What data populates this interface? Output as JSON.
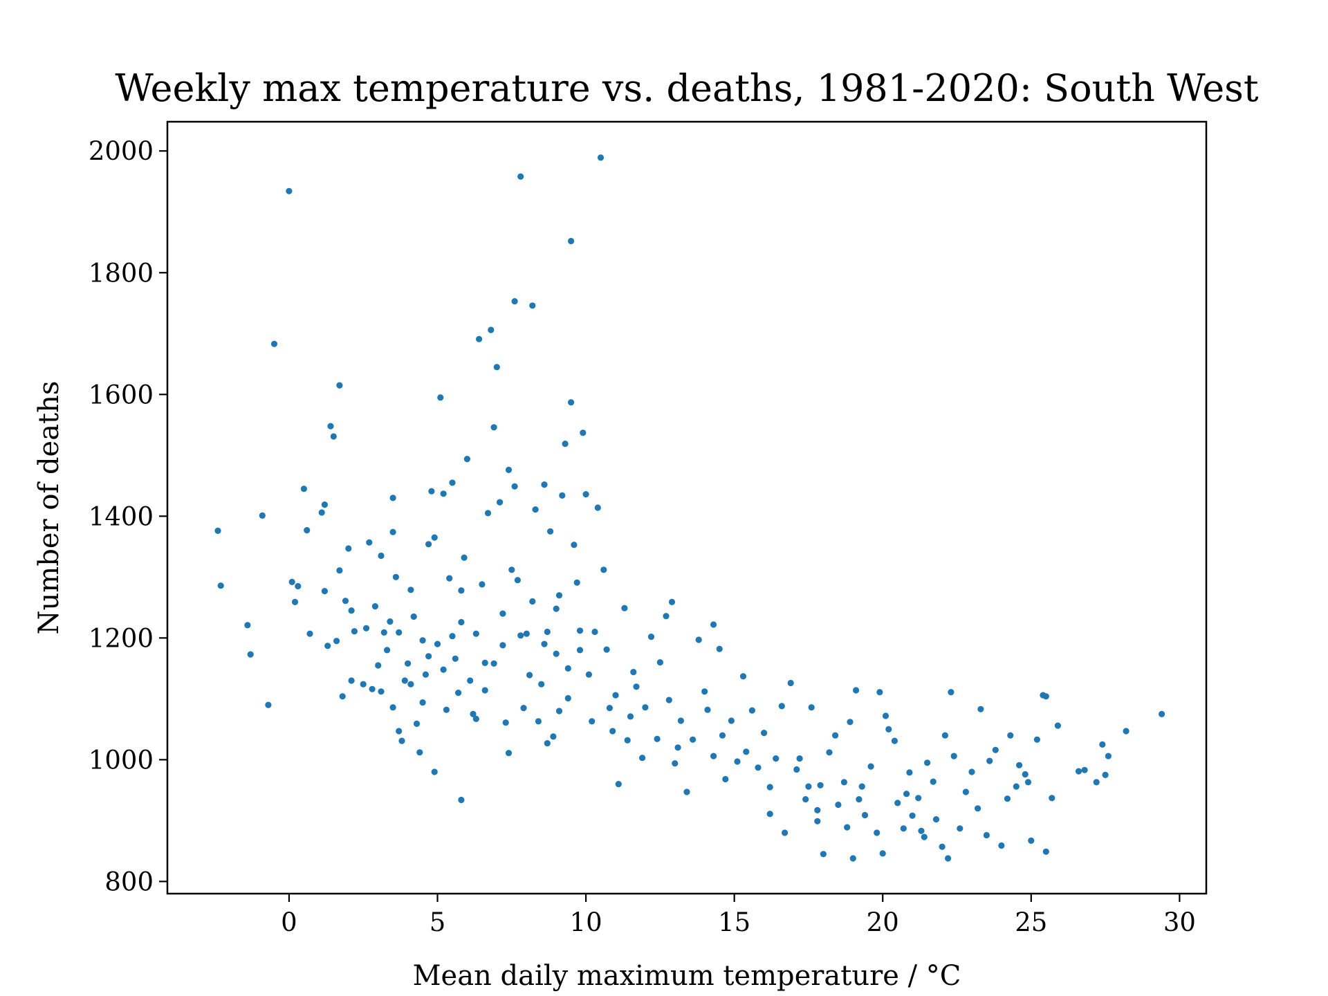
{
  "chart_data": {
    "type": "scatter",
    "title": "Weekly max temperature vs. deaths, 1981-2020: South West",
    "xlabel": "Mean daily maximum temperature / °C",
    "ylabel": "Number of deaths",
    "xlim": [
      -4.1,
      30.9
    ],
    "ylim": [
      780,
      2048
    ],
    "xticks": [
      0,
      5,
      10,
      15,
      20,
      25,
      30
    ],
    "yticks": [
      800,
      1000,
      1200,
      1400,
      1600,
      1800,
      2000
    ],
    "grid": false,
    "marker_color": "#1f77b4",
    "series": [
      {
        "points": [
          [
            -2.4,
            1376
          ],
          [
            -2.3,
            1286
          ],
          [
            -1.4,
            1221
          ],
          [
            -1.3,
            1173
          ],
          [
            -0.9,
            1401
          ],
          [
            -0.7,
            1090
          ],
          [
            -0.5,
            1683
          ],
          [
            0.0,
            1934
          ],
          [
            0.1,
            1292
          ],
          [
            0.2,
            1259
          ],
          [
            0.3,
            1285
          ],
          [
            0.5,
            1445
          ],
          [
            0.6,
            1377
          ],
          [
            0.7,
            1207
          ],
          [
            1.1,
            1406
          ],
          [
            1.2,
            1419
          ],
          [
            1.2,
            1277
          ],
          [
            1.3,
            1187
          ],
          [
            1.4,
            1548
          ],
          [
            1.5,
            1531
          ],
          [
            1.6,
            1195
          ],
          [
            1.7,
            1311
          ],
          [
            1.7,
            1615
          ],
          [
            1.8,
            1104
          ],
          [
            1.9,
            1261
          ],
          [
            2.0,
            1347
          ],
          [
            2.1,
            1245
          ],
          [
            2.1,
            1130
          ],
          [
            2.2,
            1211
          ],
          [
            2.5,
            1124
          ],
          [
            2.6,
            1216
          ],
          [
            2.7,
            1357
          ],
          [
            2.8,
            1116
          ],
          [
            2.9,
            1252
          ],
          [
            3.0,
            1155
          ],
          [
            3.1,
            1335
          ],
          [
            3.1,
            1112
          ],
          [
            3.2,
            1209
          ],
          [
            3.3,
            1180
          ],
          [
            3.4,
            1227
          ],
          [
            3.5,
            1374
          ],
          [
            3.5,
            1430
          ],
          [
            3.6,
            1300
          ],
          [
            3.7,
            1047
          ],
          [
            3.7,
            1209
          ],
          [
            3.8,
            1031
          ],
          [
            3.9,
            1130
          ],
          [
            4.0,
            1158
          ],
          [
            4.1,
            1279
          ],
          [
            4.2,
            1235
          ],
          [
            4.3,
            1059
          ],
          [
            4.4,
            1012
          ],
          [
            4.5,
            1094
          ],
          [
            4.6,
            1140
          ],
          [
            4.7,
            1170
          ],
          [
            4.7,
            1354
          ],
          [
            4.8,
            1441
          ],
          [
            4.9,
            1365
          ],
          [
            4.9,
            980
          ],
          [
            5.0,
            1190
          ],
          [
            5.1,
            1595
          ],
          [
            5.2,
            1437
          ],
          [
            5.3,
            1082
          ],
          [
            5.4,
            1298
          ],
          [
            5.5,
            1455
          ],
          [
            5.5,
            1203
          ],
          [
            5.6,
            1166
          ],
          [
            5.7,
            1110
          ],
          [
            5.8,
            1278
          ],
          [
            5.8,
            934
          ],
          [
            5.9,
            1332
          ],
          [
            6.0,
            1494
          ],
          [
            6.1,
            1130
          ],
          [
            6.2,
            1075
          ],
          [
            6.3,
            1207
          ],
          [
            6.4,
            1691
          ],
          [
            6.5,
            1288
          ],
          [
            6.6,
            1159
          ],
          [
            6.7,
            1405
          ],
          [
            6.8,
            1706
          ],
          [
            6.9,
            1546
          ],
          [
            7.0,
            1645
          ],
          [
            7.1,
            1423
          ],
          [
            7.2,
            1188
          ],
          [
            7.3,
            1061
          ],
          [
            7.4,
            1476
          ],
          [
            7.5,
            1312
          ],
          [
            7.6,
            1753
          ],
          [
            7.6,
            1449
          ],
          [
            7.7,
            1295
          ],
          [
            7.8,
            1958
          ],
          [
            7.9,
            1085
          ],
          [
            8.0,
            1207
          ],
          [
            8.1,
            1139
          ],
          [
            8.2,
            1746
          ],
          [
            8.3,
            1411
          ],
          [
            8.4,
            1063
          ],
          [
            8.5,
            1124
          ],
          [
            8.6,
            1452
          ],
          [
            8.7,
            1210
          ],
          [
            8.8,
            1375
          ],
          [
            8.9,
            1038
          ],
          [
            9.0,
            1174
          ],
          [
            9.1,
            1270
          ],
          [
            9.2,
            1434
          ],
          [
            9.3,
            1519
          ],
          [
            9.4,
            1101
          ],
          [
            9.5,
            1587
          ],
          [
            9.5,
            1852
          ],
          [
            9.6,
            1353
          ],
          [
            9.7,
            1291
          ],
          [
            9.8,
            1212
          ],
          [
            9.9,
            1537
          ],
          [
            10.0,
            1436
          ],
          [
            10.1,
            1140
          ],
          [
            10.2,
            1063
          ],
          [
            10.4,
            1414
          ],
          [
            10.5,
            1989
          ],
          [
            10.6,
            1312
          ],
          [
            10.7,
            1181
          ],
          [
            10.9,
            1047
          ],
          [
            11.0,
            1106
          ],
          [
            11.1,
            960
          ],
          [
            11.3,
            1249
          ],
          [
            11.5,
            1071
          ],
          [
            11.7,
            1120
          ],
          [
            11.9,
            1003
          ],
          [
            12.0,
            1086
          ],
          [
            12.2,
            1202
          ],
          [
            12.4,
            1034
          ],
          [
            12.5,
            1160
          ],
          [
            12.7,
            1236
          ],
          [
            12.9,
            1259
          ],
          [
            13.0,
            994
          ],
          [
            13.2,
            1064
          ],
          [
            13.4,
            947
          ],
          [
            13.6,
            1033
          ],
          [
            13.8,
            1197
          ],
          [
            14.0,
            1112
          ],
          [
            14.1,
            1082
          ],
          [
            14.3,
            1222
          ],
          [
            14.5,
            1182
          ],
          [
            14.6,
            1040
          ],
          [
            14.7,
            968
          ],
          [
            14.9,
            1064
          ],
          [
            15.1,
            997
          ],
          [
            15.3,
            1137
          ],
          [
            15.4,
            1013
          ],
          [
            15.6,
            1081
          ],
          [
            15.8,
            987
          ],
          [
            16.0,
            1044
          ],
          [
            16.2,
            955
          ],
          [
            16.4,
            1002
          ],
          [
            16.6,
            1088
          ],
          [
            16.7,
            880
          ],
          [
            16.9,
            1126
          ],
          [
            17.1,
            984
          ],
          [
            17.2,
            1002
          ],
          [
            17.4,
            935
          ],
          [
            17.6,
            1086
          ],
          [
            17.8,
            917
          ],
          [
            17.9,
            958
          ],
          [
            18.0,
            845
          ],
          [
            18.2,
            1012
          ],
          [
            18.4,
            1040
          ],
          [
            18.5,
            926
          ],
          [
            18.7,
            963
          ],
          [
            18.9,
            1062
          ],
          [
            19.0,
            838
          ],
          [
            19.1,
            1114
          ],
          [
            19.2,
            935
          ],
          [
            19.4,
            909
          ],
          [
            19.6,
            989
          ],
          [
            19.8,
            880
          ],
          [
            19.9,
            1111
          ],
          [
            20.0,
            846
          ],
          [
            20.1,
            1072
          ],
          [
            20.2,
            1050
          ],
          [
            20.4,
            1031
          ],
          [
            20.5,
            929
          ],
          [
            20.7,
            887
          ],
          [
            20.8,
            944
          ],
          [
            21.0,
            908
          ],
          [
            21.2,
            937
          ],
          [
            21.4,
            873
          ],
          [
            21.5,
            995
          ],
          [
            21.7,
            964
          ],
          [
            21.8,
            902
          ],
          [
            22.0,
            857
          ],
          [
            22.1,
            1040
          ],
          [
            22.2,
            838
          ],
          [
            22.3,
            1111
          ],
          [
            22.4,
            1006
          ],
          [
            22.6,
            887
          ],
          [
            22.8,
            947
          ],
          [
            23.0,
            980
          ],
          [
            23.2,
            920
          ],
          [
            23.3,
            1083
          ],
          [
            23.5,
            876
          ],
          [
            23.6,
            998
          ],
          [
            23.8,
            1016
          ],
          [
            24.0,
            859
          ],
          [
            24.2,
            936
          ],
          [
            24.3,
            1040
          ],
          [
            24.5,
            956
          ],
          [
            24.6,
            991
          ],
          [
            24.8,
            976
          ],
          [
            24.9,
            963
          ],
          [
            25.0,
            867
          ],
          [
            25.2,
            1033
          ],
          [
            25.4,
            1106
          ],
          [
            25.5,
            849
          ],
          [
            25.5,
            1104
          ],
          [
            25.7,
            937
          ],
          [
            25.9,
            1056
          ],
          [
            26.6,
            981
          ],
          [
            26.8,
            983
          ],
          [
            27.2,
            963
          ],
          [
            27.4,
            1025
          ],
          [
            27.5,
            975
          ],
          [
            27.6,
            1006
          ],
          [
            28.2,
            1047
          ],
          [
            29.4,
            1075
          ],
          [
            8.2,
            1260
          ],
          [
            8.6,
            1190
          ],
          [
            9.0,
            1248
          ],
          [
            9.8,
            1180
          ],
          [
            10.3,
            1210
          ],
          [
            11.6,
            1144
          ],
          [
            12.8,
            1098
          ],
          [
            13.1,
            1020
          ],
          [
            6.6,
            1114
          ],
          [
            7.2,
            1240
          ],
          [
            7.8,
            1204
          ],
          [
            9.4,
            1150
          ],
          [
            9.1,
            1080
          ],
          [
            8.7,
            1027
          ],
          [
            10.8,
            1085
          ],
          [
            11.4,
            1032
          ],
          [
            5.2,
            1148
          ],
          [
            5.8,
            1226
          ],
          [
            6.3,
            1067
          ],
          [
            4.5,
            1196
          ],
          [
            4.1,
            1124
          ],
          [
            3.5,
            1086
          ],
          [
            6.9,
            1158
          ],
          [
            7.4,
            1011
          ],
          [
            14.3,
            1006
          ],
          [
            16.2,
            911
          ],
          [
            17.5,
            956
          ],
          [
            19.3,
            956
          ],
          [
            20.9,
            979
          ],
          [
            21.3,
            883
          ],
          [
            18.8,
            889
          ],
          [
            17.8,
            899
          ]
        ]
      }
    ]
  }
}
